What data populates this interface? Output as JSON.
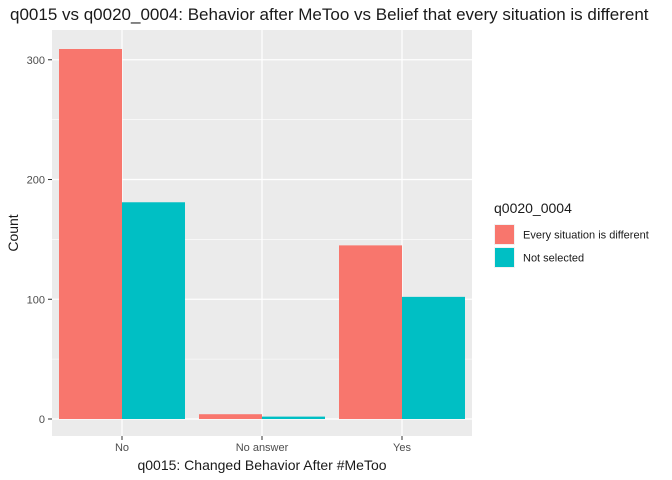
{
  "chart_data": {
    "type": "bar",
    "title": "q0015 vs q0020_0004: Behavior after MeToo vs Belief that every situation is different",
    "xlabel": "q0015: Changed Behavior After #MeToo",
    "ylabel": "Count",
    "categories": [
      "No",
      "No answer",
      "Yes"
    ],
    "series": [
      {
        "name": "Every situation is different",
        "color": "#F8766D",
        "values": [
          309,
          4,
          145
        ]
      },
      {
        "name": "Not selected",
        "color": "#00BFC4",
        "values": [
          181,
          2,
          102
        ]
      }
    ],
    "ylim": [
      0,
      309
    ],
    "yticks": [
      0,
      100,
      200,
      300
    ],
    "legend": {
      "title": "q0020_0004",
      "position": "right"
    },
    "grid": true
  }
}
